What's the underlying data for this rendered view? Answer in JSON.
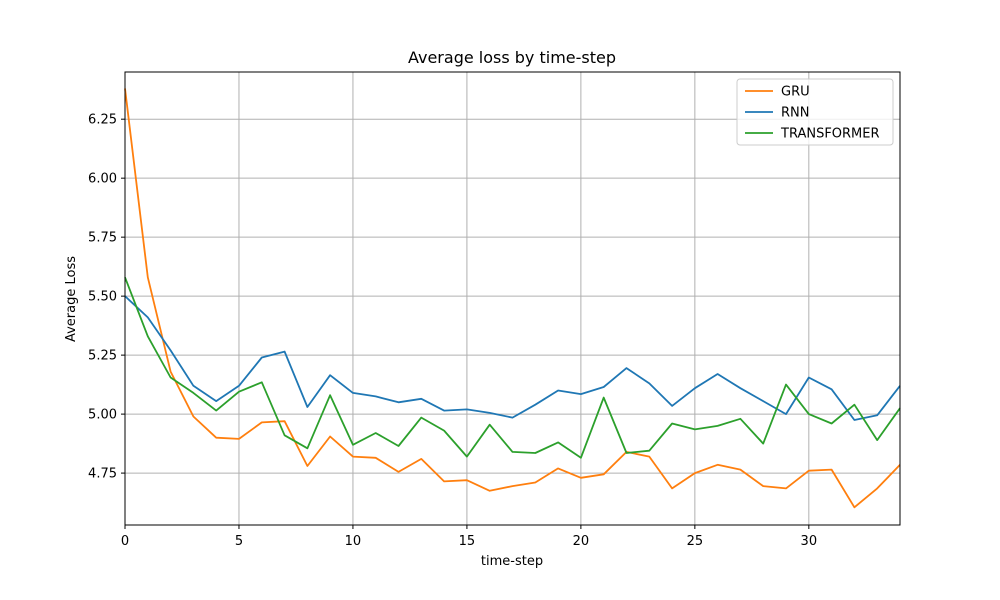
{
  "chart_data": {
    "type": "line",
    "title": "Average loss by time-step",
    "xlabel": "time-step",
    "ylabel": "Average Loss",
    "xlim": [
      0,
      34
    ],
    "ylim": [
      4.53,
      6.45
    ],
    "x_ticks": [
      0,
      5,
      10,
      15,
      20,
      25,
      30
    ],
    "y_ticks": [
      4.75,
      5.0,
      5.25,
      5.5,
      5.75,
      6.0,
      6.25
    ],
    "y_tick_labels": [
      "4.75",
      "5.00",
      "5.25",
      "5.50",
      "5.75",
      "6.00",
      "6.25"
    ],
    "grid": true,
    "legend_position": "top-right",
    "x": [
      0,
      1,
      2,
      3,
      4,
      5,
      6,
      7,
      8,
      9,
      10,
      11,
      12,
      13,
      14,
      15,
      16,
      17,
      18,
      19,
      20,
      21,
      22,
      23,
      24,
      25,
      26,
      27,
      28,
      29,
      30,
      31,
      32,
      33,
      34
    ],
    "series": [
      {
        "name": "GRU",
        "color": "#ff7f0e",
        "values": [
          6.38,
          5.58,
          5.18,
          4.99,
          4.9,
          4.895,
          4.965,
          4.97,
          4.78,
          4.905,
          4.82,
          4.815,
          4.755,
          4.81,
          4.715,
          4.72,
          4.675,
          4.695,
          4.71,
          4.77,
          4.73,
          4.745,
          4.84,
          4.82,
          4.685,
          4.75,
          4.785,
          4.765,
          4.695,
          4.685,
          4.76,
          4.765,
          4.605,
          4.685,
          4.785
        ]
      },
      {
        "name": "RNN",
        "color": "#1f77b4",
        "values": [
          5.5,
          5.41,
          5.27,
          5.12,
          5.055,
          5.12,
          5.24,
          5.265,
          5.03,
          5.165,
          5.09,
          5.075,
          5.05,
          5.065,
          5.015,
          5.02,
          5.005,
          4.985,
          5.04,
          5.1,
          5.085,
          5.115,
          5.195,
          5.13,
          5.035,
          5.11,
          5.17,
          5.11,
          5.055,
          5.0,
          5.155,
          5.105,
          4.975,
          4.995,
          5.12
        ]
      },
      {
        "name": "TRANSFORMER",
        "color": "#2ca02c",
        "values": [
          5.58,
          5.33,
          5.155,
          5.09,
          5.015,
          5.095,
          5.135,
          4.91,
          4.855,
          5.08,
          4.87,
          4.92,
          4.865,
          4.985,
          4.93,
          4.82,
          4.955,
          4.84,
          4.835,
          4.88,
          4.815,
          5.07,
          4.835,
          4.845,
          4.96,
          4.935,
          4.95,
          4.98,
          4.875,
          5.125,
          5.0,
          4.96,
          5.04,
          4.89,
          5.025
        ]
      }
    ]
  }
}
